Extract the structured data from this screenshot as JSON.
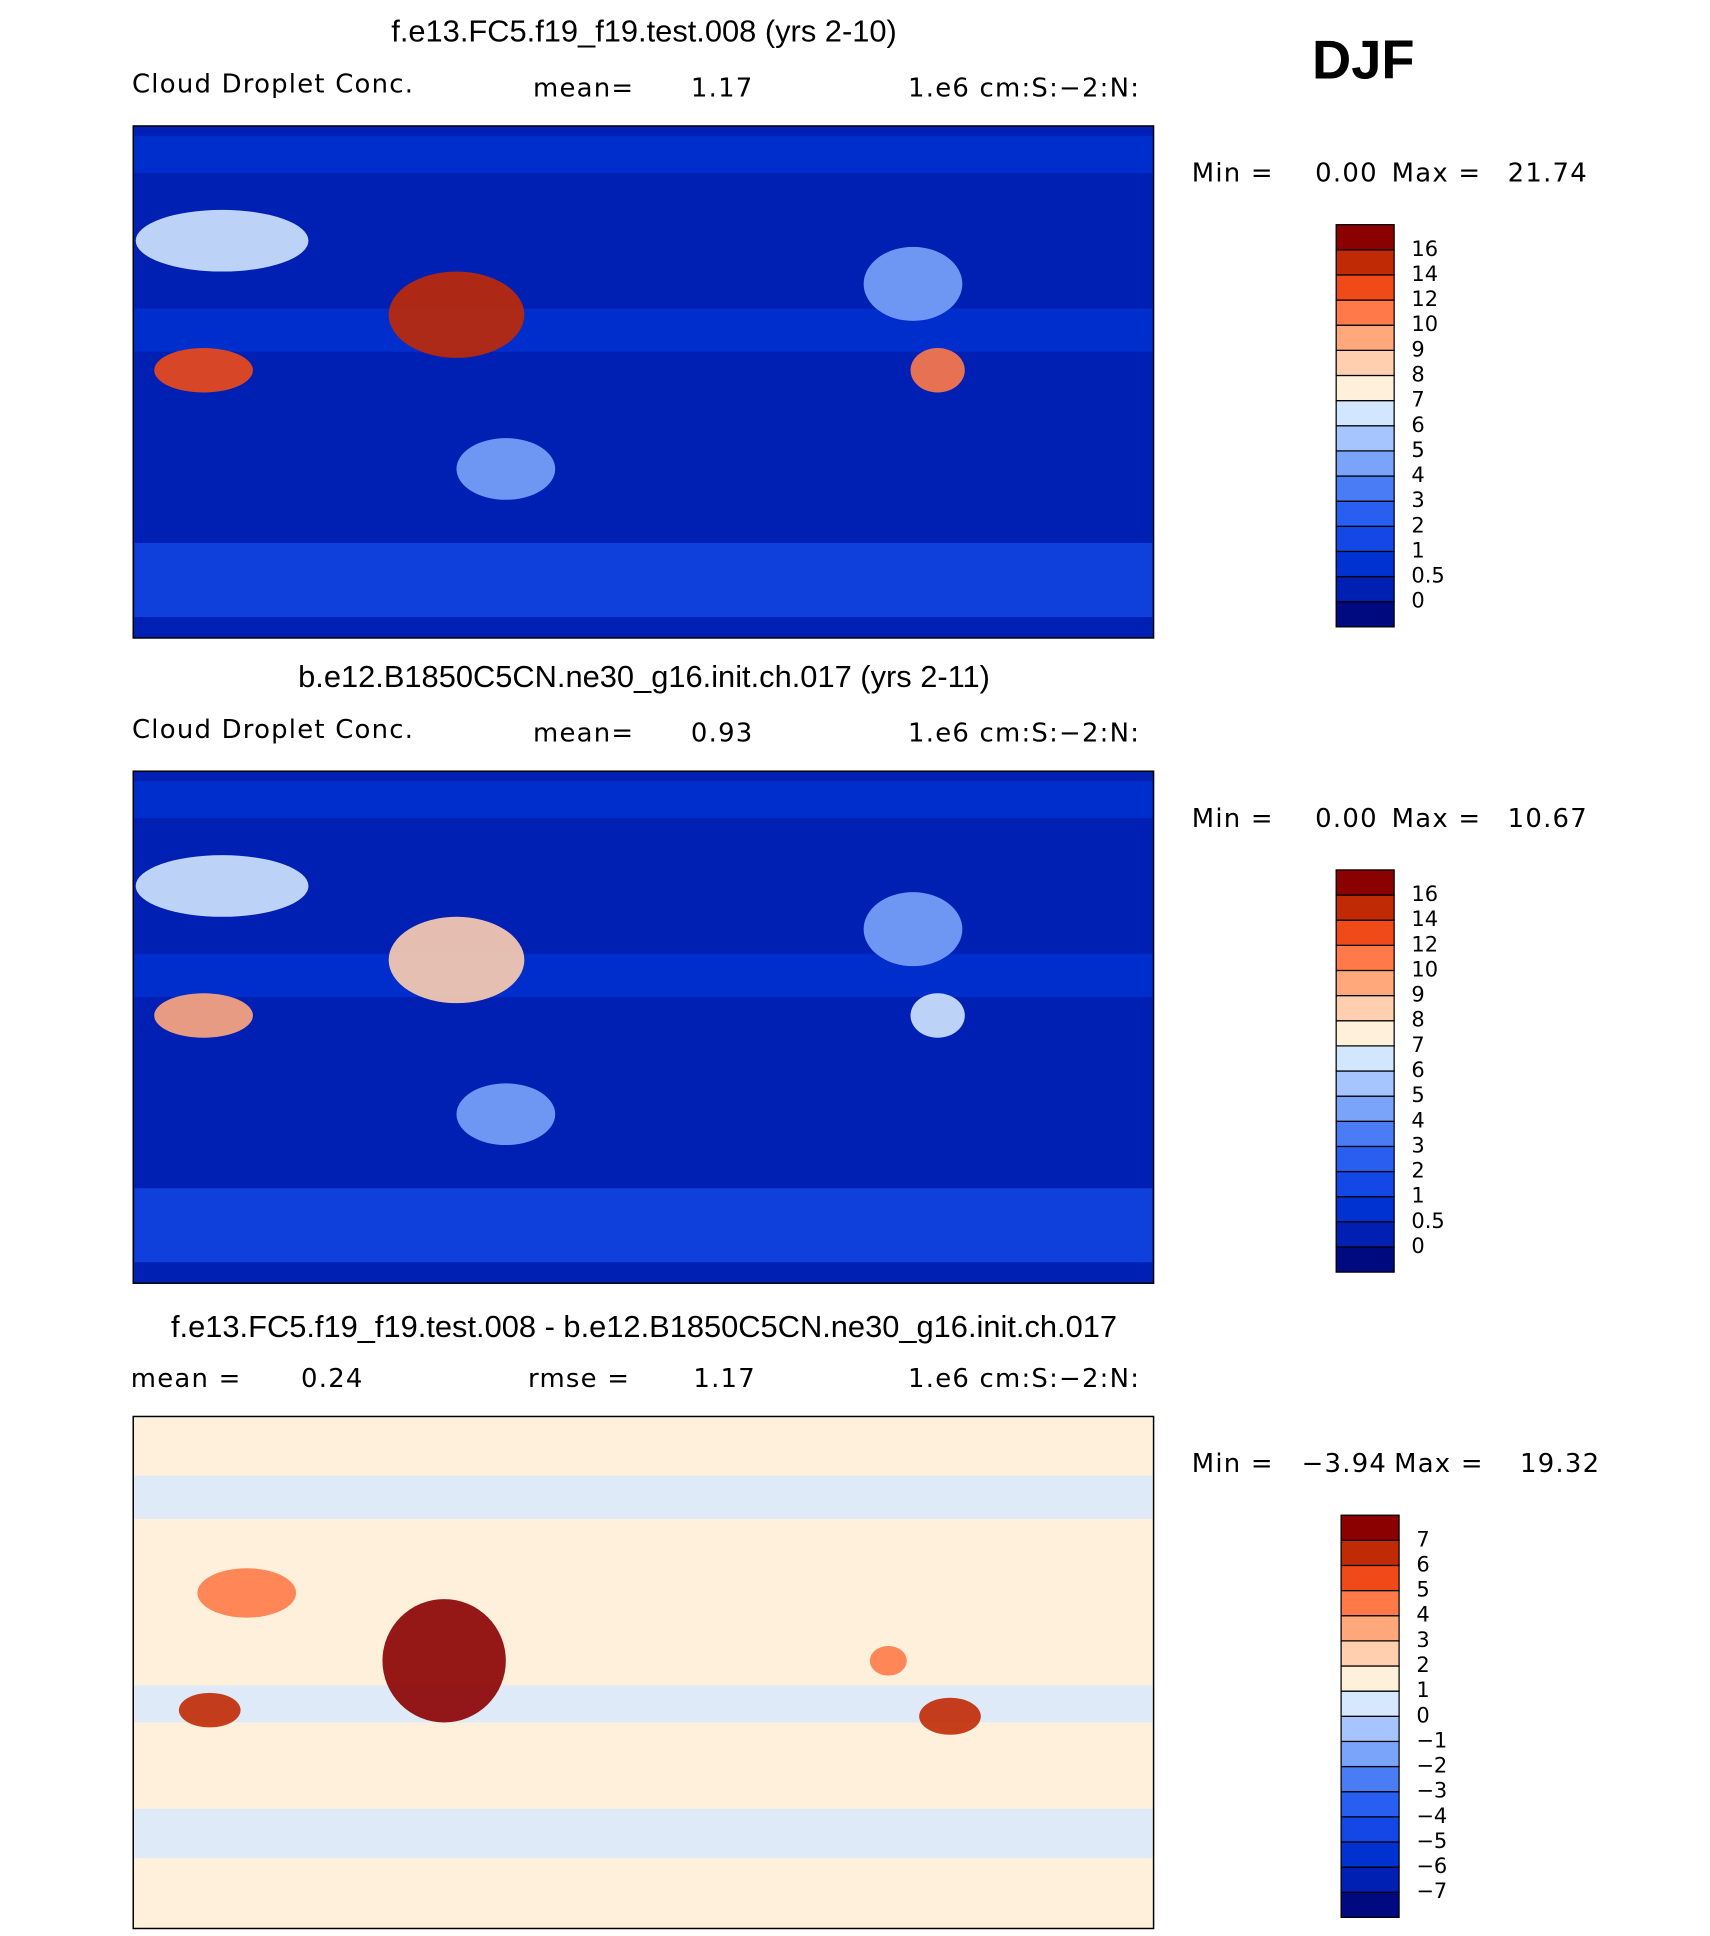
{
  "season": "DJF",
  "panels": [
    {
      "title": "f.e13.FC5.f19_f19.test.008 (yrs 2-10)",
      "variable": "Cloud Droplet Conc.",
      "mean_label": "mean=",
      "mean": 1.17,
      "units": "1.e6 cm:S:−2:N:",
      "min_label": "Min =",
      "min": {
        "value": 0,
        "label": "0.00"
      },
      "max_label": "Max =",
      "max": 21.74,
      "colorbar": {
        "levels": [
          0,
          0.5,
          1,
          2,
          3,
          4,
          5,
          6,
          7,
          8,
          9,
          10,
          12,
          14,
          16
        ],
        "colors": [
          "#000a80",
          "#0020b4",
          "#0032d2",
          "#1448e6",
          "#285ff0",
          "#4a7cf6",
          "#7aa3fa",
          "#a6c4fd",
          "#d2e6fe",
          "#fff0dc",
          "#ffcfb0",
          "#ffa87c",
          "#ff7a48",
          "#f04a18",
          "#c02a04",
          "#8b0000"
        ]
      }
    },
    {
      "title": "b.e12.B1850C5CN.ne30_g16.init.ch.017 (yrs 2-11)",
      "variable": "Cloud Droplet Conc.",
      "mean_label": "mean=",
      "mean": 0.93,
      "units": "1.e6 cm:S:−2:N:",
      "min_label": "Min =",
      "min": {
        "value": 0,
        "label": "0.00"
      },
      "max_label": "Max =",
      "max": 10.67,
      "colorbar": {
        "levels": [
          0,
          0.5,
          1,
          2,
          3,
          4,
          5,
          6,
          7,
          8,
          9,
          10,
          12,
          14,
          16
        ],
        "colors": [
          "#000a80",
          "#0020b4",
          "#0032d2",
          "#1448e6",
          "#285ff0",
          "#4a7cf6",
          "#7aa3fa",
          "#a6c4fd",
          "#d2e6fe",
          "#fff0dc",
          "#ffcfb0",
          "#ffa87c",
          "#ff7a48",
          "#f04a18",
          "#c02a04",
          "#8b0000"
        ]
      }
    },
    {
      "title": "f.e13.FC5.f19_f19.test.008 - b.e12.B1850C5CN.ne30_g16.init.ch.017",
      "mean_label": "mean =",
      "mean": 0.24,
      "rmse_label": "rmse =",
      "rmse": 1.17,
      "units": "1.e6 cm:S:−2:N:",
      "min_label": "Min =",
      "min": {
        "value": -3.94,
        "label": "−3.94"
      },
      "max_label": "Max =",
      "max": 19.32,
      "colorbar": {
        "levels": [
          {
            "value": -7,
            "label": "−7"
          },
          {
            "value": -6,
            "label": "−6"
          },
          {
            "value": -5,
            "label": "−5"
          },
          {
            "value": -4,
            "label": "−4"
          },
          {
            "value": -3,
            "label": "−3"
          },
          {
            "value": -2,
            "label": "−2"
          },
          {
            "value": -1,
            "label": "−1"
          },
          0,
          1,
          2,
          3,
          4,
          5,
          6,
          7
        ],
        "colors": [
          "#000a80",
          "#0020b4",
          "#0032d2",
          "#1448e6",
          "#285ff0",
          "#4a7cf6",
          "#7aa3fa",
          "#a6c4fd",
          "#d6e8fe",
          "#fff0dc",
          "#ffcfb0",
          "#ffa87c",
          "#ff7a48",
          "#f04a18",
          "#c02a04",
          "#8b0000"
        ]
      }
    }
  ]
}
